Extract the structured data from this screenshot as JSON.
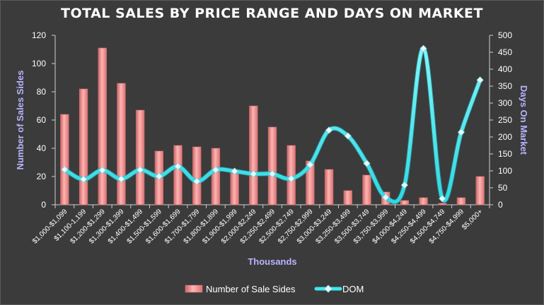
{
  "chart_data": {
    "type": "bar",
    "title": "TOTAL SALES BY PRICE RANGE AND DAYS ON MARKET",
    "xlabel": "Thousands",
    "ylabel": "Number of Sales Sides",
    "y2label": "Days On Market",
    "ylim": [
      0,
      120
    ],
    "y2lim": [
      0,
      500
    ],
    "yticks": [
      0,
      20,
      40,
      60,
      80,
      100,
      120
    ],
    "y2ticks": [
      0,
      50,
      100,
      150,
      200,
      250,
      300,
      350,
      400,
      450,
      500
    ],
    "grid": false,
    "legend_position": "bottom",
    "categories": [
      "$1,000-$1,099",
      "$1,100-1,199",
      "$1,200-$1,299",
      "$1,300-$1,399",
      "$1,400-$1,499",
      "$1,500-$1,599",
      "$1,600-$1,699",
      "$1,700-$1,799",
      "$1,800-$1,899",
      "$1,900-$1,999",
      "$2,000-$2,249",
      "$2,250-$2,499",
      "$2,500-$2,749",
      "$2,750-$2,999",
      "$3,000-$3,249",
      "$3,250-$3,499",
      "$3,500-$3,749",
      "$3,750-$3,999",
      "$4,000-$4,249",
      "$4,250-$4,499",
      "$4,500-$4,749",
      "$4,750-$4,999",
      "$5,000+"
    ],
    "series": [
      {
        "name": "Number of Sale Sides",
        "kind": "bar",
        "axis": "left",
        "color": "#f08c8c",
        "values": [
          64,
          82,
          111,
          86,
          67,
          38,
          42,
          41,
          40,
          23,
          70,
          55,
          42,
          31,
          25,
          10,
          21,
          9,
          3,
          5,
          1,
          5,
          20
        ]
      },
      {
        "name": "DOM",
        "kind": "line",
        "axis": "right",
        "color": "#40e8f0",
        "values": [
          104,
          75,
          102,
          76,
          103,
          84,
          113,
          69,
          103,
          99,
          91,
          91,
          77,
          118,
          220,
          203,
          122,
          22,
          58,
          461,
          18,
          214,
          368
        ]
      }
    ]
  }
}
